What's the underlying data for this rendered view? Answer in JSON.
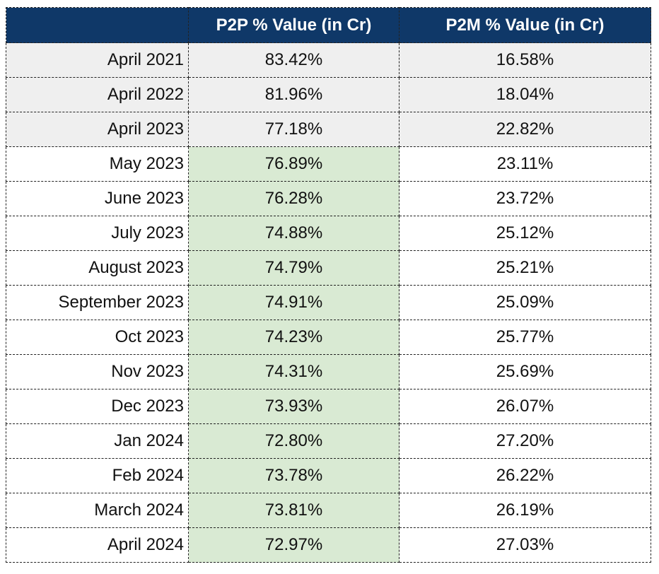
{
  "table": {
    "headers": [
      "",
      "P2P % Value (in Cr)",
      "P2M % Value (in Cr)"
    ],
    "rows": [
      {
        "month": "April 2021",
        "p2p": "83.42%",
        "p2m": "16.58%",
        "shaded": true
      },
      {
        "month": "April 2022",
        "p2p": "81.96%",
        "p2m": "18.04%",
        "shaded": true
      },
      {
        "month": "April 2023",
        "p2p": "77.18%",
        "p2m": "22.82%",
        "shaded": true
      },
      {
        "month": "May 2023",
        "p2p": "76.89%",
        "p2m": "23.11%",
        "shaded": false
      },
      {
        "month": "June 2023",
        "p2p": "76.28%",
        "p2m": "23.72%",
        "shaded": false
      },
      {
        "month": "July 2023",
        "p2p": "74.88%",
        "p2m": "25.12%",
        "shaded": false
      },
      {
        "month": "August 2023",
        "p2p": "74.79%",
        "p2m": "25.21%",
        "shaded": false
      },
      {
        "month": "September 2023",
        "p2p": "74.91%",
        "p2m": "25.09%",
        "shaded": false
      },
      {
        "month": "Oct 2023",
        "p2p": "74.23%",
        "p2m": "25.77%",
        "shaded": false
      },
      {
        "month": "Nov 2023",
        "p2p": "74.31%",
        "p2m": "25.69%",
        "shaded": false
      },
      {
        "month": "Dec 2023",
        "p2p": "73.93%",
        "p2m": "26.07%",
        "shaded": false
      },
      {
        "month": "Jan 2024",
        "p2p": "72.80%",
        "p2m": "27.20%",
        "shaded": false
      },
      {
        "month": "Feb 2024",
        "p2p": "73.78%",
        "p2m": "26.22%",
        "shaded": false
      },
      {
        "month": "March 2024",
        "p2p": "73.81%",
        "p2m": "26.19%",
        "shaded": false
      },
      {
        "month": "April 2024",
        "p2p": "72.97%",
        "p2m": "27.03%",
        "shaded": false
      }
    ]
  },
  "colors": {
    "header_bg": "#0f3868",
    "shaded_row_bg": "#efefef",
    "highlight_bg": "#d9ead3"
  }
}
